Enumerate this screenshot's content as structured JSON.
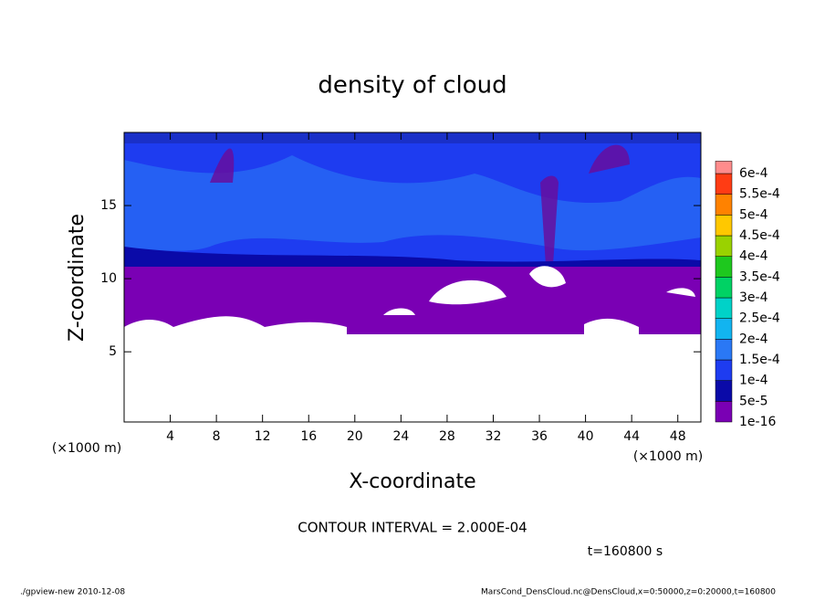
{
  "chart_data": {
    "type": "contour",
    "title": "density of cloud",
    "x_label": "X-coordinate",
    "y_label": "Z-coordinate",
    "x_unit": "(×1000 m)",
    "y_unit": "(×1000 m)",
    "xlim": [
      0,
      50
    ],
    "xticks": [
      4,
      8,
      12,
      16,
      20,
      24,
      28,
      32,
      36,
      40,
      44,
      48
    ],
    "ylim": [
      0.2,
      20
    ],
    "yticks": [
      5,
      10,
      15
    ],
    "colorbar": {
      "levels": [
        {
          "value": 1e-16,
          "label": "1e-16"
        },
        {
          "value": 5e-05,
          "label": "5e-5"
        },
        {
          "value": 0.0001,
          "label": "1e-4"
        },
        {
          "value": 0.00015,
          "label": "1.5e-4"
        },
        {
          "value": 0.0002,
          "label": "2e-4"
        },
        {
          "value": 0.00025,
          "label": "2.5e-4"
        },
        {
          "value": 0.0003,
          "label": "3e-4"
        },
        {
          "value": 0.00035,
          "label": "3.5e-4"
        },
        {
          "value": 0.0004,
          "label": "4e-4"
        },
        {
          "value": 0.00045,
          "label": "4.5e-4"
        },
        {
          "value": 0.0005,
          "label": "5e-4"
        },
        {
          "value": 0.00055,
          "label": "5.5e-4"
        },
        {
          "value": 0.0006,
          "label": "6e-4"
        }
      ],
      "colors": [
        "#7a00b4",
        "#0a0aa8",
        "#1e3cf0",
        "#2a78f5",
        "#12b4f0",
        "#00d2c8",
        "#00d264",
        "#1ec81e",
        "#9ad200",
        "#ffc800",
        "#ff8200",
        "#ff3c14",
        "#ff8c8c"
      ]
    },
    "contour_interval": "CONTOUR INTERVAL = 2.000E-04",
    "time_label": "t=160800 s"
  },
  "footer": {
    "left": "./gpview-new  2010-12-08",
    "right": "MarsCond_DensCloud.nc@DensCloud,x=0:50000,z=0:20000,t=160800"
  }
}
